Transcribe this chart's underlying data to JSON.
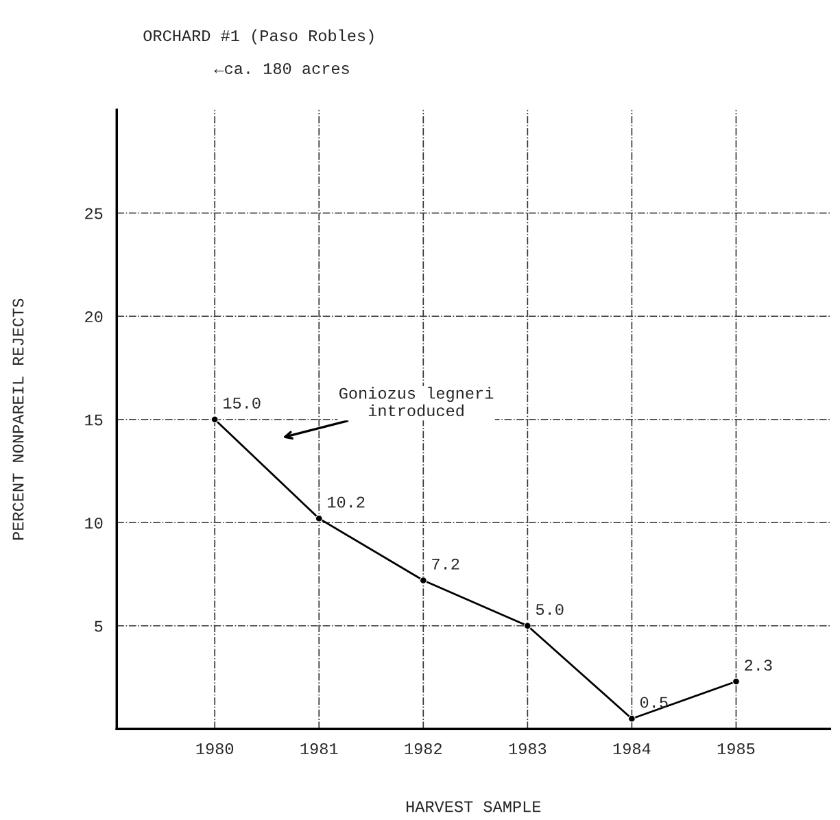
{
  "chart_data": {
    "type": "line",
    "xlabel": "HARVEST SAMPLE",
    "ylabel": "PERCENT NONPAREIL REJECTS",
    "x": [
      1980,
      1981,
      1982,
      1983,
      1984,
      1985
    ],
    "series": [
      {
        "color": "#000000",
        "values": [
          15.0,
          10.2,
          7.2,
          5.0,
          0.5,
          2.3
        ],
        "value_labels": [
          "15.0",
          "10.2",
          "7.2",
          "5.0",
          "0.5",
          "2.3"
        ]
      }
    ],
    "xlim": [
      1979.06,
      1985.9
    ],
    "ylim": [
      0,
      30
    ],
    "xticks": [
      1980,
      1981,
      1982,
      1983,
      1984,
      1985
    ],
    "yticks": [
      5,
      10,
      15,
      20,
      25
    ],
    "grid": true,
    "marker": "circle",
    "line_style": "solid",
    "legend": false,
    "annotations": [
      "ORCHARD #1 (Paso Robles)",
      "←ca. 180 acres",
      "Goniozus legneri\nintroduced"
    ]
  }
}
